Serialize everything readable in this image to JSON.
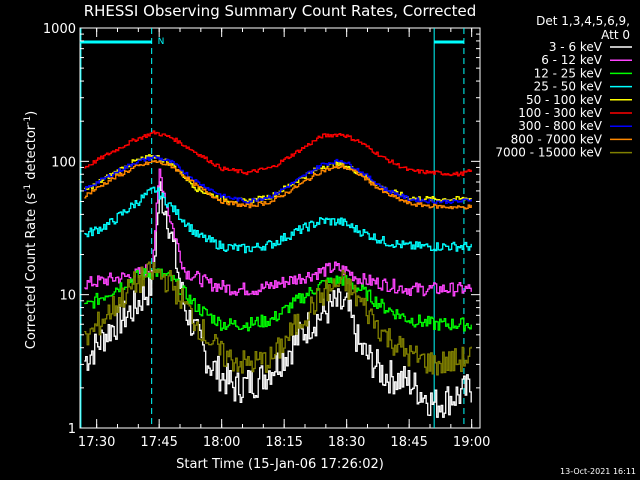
{
  "chart_data": {
    "type": "line",
    "title": "RHESSI Observing Summary Count Rates, Corrected",
    "xlabel": "Start Time (15-Jan-06 17:26:02)",
    "ylabel_main": "Corrected Count Rate (s",
    "ylabel_sup1": "-1",
    "ylabel_mid": " detector",
    "ylabel_sup2": "-1",
    "ylabel_end": ")",
    "yscale": "log",
    "ylim": [
      1,
      1000
    ],
    "xlim_minutes": [
      17.433,
      19.033
    ],
    "x_ticks": [
      {
        "label": "17:30",
        "t": 17.5
      },
      {
        "label": "17:45",
        "t": 17.75
      },
      {
        "label": "18:00",
        "t": 18.0
      },
      {
        "label": "18:15",
        "t": 18.25
      },
      {
        "label": "18:30",
        "t": 18.5
      },
      {
        "label": "18:45",
        "t": 18.75
      },
      {
        "label": "19:00",
        "t": 19.0
      }
    ],
    "y_ticks": [
      {
        "label": "1",
        "v": 1
      },
      {
        "label": "10",
        "v": 10
      },
      {
        "label": "100",
        "v": 100
      },
      {
        "label": "1000",
        "v": 1000
      }
    ],
    "legend_header": [
      "Det 1,3,4,5,6,9,",
      "Att 0"
    ],
    "legend_placement": "right",
    "night_marker": "N",
    "night_intervals": [
      [
        17.433,
        17.72
      ],
      [
        18.85,
        19.033
      ]
    ],
    "series": [
      {
        "name": "3 - 6 keV",
        "color": "#ffffff",
        "x": [
          17.45,
          17.55,
          17.65,
          17.72,
          17.75,
          17.78,
          17.85,
          17.95,
          18.05,
          18.15,
          18.25,
          18.35,
          18.45,
          18.5,
          18.55,
          18.65,
          18.75,
          18.85,
          18.95,
          19.0
        ],
        "y": [
          3.2,
          5.5,
          8,
          12,
          60,
          40,
          8,
          3,
          2,
          2.3,
          3.5,
          6,
          8.5,
          8,
          4,
          2.5,
          2.2,
          1.5,
          1.8,
          2
        ]
      },
      {
        "name": "6 - 12 keV",
        "color": "#ff44ff",
        "x": [
          17.45,
          17.55,
          17.65,
          17.72,
          17.75,
          17.78,
          17.85,
          17.95,
          18.05,
          18.15,
          18.25,
          18.35,
          18.45,
          18.5,
          18.55,
          18.65,
          18.75,
          18.85,
          18.95,
          19.0
        ],
        "y": [
          12,
          13,
          14,
          16,
          85,
          45,
          15,
          12,
          11,
          11,
          12.5,
          14,
          16,
          15,
          13,
          12,
          11,
          11,
          11,
          11
        ]
      },
      {
        "name": "12 - 25 keV",
        "color": "#00ff00",
        "x": [
          17.45,
          17.55,
          17.65,
          17.73,
          17.8,
          17.9,
          18.0,
          18.1,
          18.2,
          18.3,
          18.4,
          18.48,
          18.55,
          18.65,
          18.75,
          18.85,
          18.95,
          19.0
        ],
        "y": [
          8,
          10.5,
          13.5,
          15,
          13,
          8,
          6,
          6,
          6.5,
          9,
          12,
          13,
          11,
          8,
          6.5,
          6,
          6,
          6
        ]
      },
      {
        "name": "25 - 50 keV",
        "color": "#00ffff",
        "x": [
          17.45,
          17.55,
          17.65,
          17.73,
          17.8,
          17.9,
          18.0,
          18.1,
          18.2,
          18.3,
          18.4,
          18.48,
          18.55,
          18.65,
          18.75,
          18.85,
          18.95,
          19.0
        ],
        "y": [
          28,
          34,
          48,
          62,
          45,
          28,
          23,
          22,
          24,
          30,
          36,
          35,
          30,
          25,
          23,
          23,
          23,
          23
        ]
      },
      {
        "name": "50 - 100 keV",
        "color": "#ffff00",
        "x": [
          17.45,
          17.55,
          17.65,
          17.73,
          17.8,
          17.9,
          18.0,
          18.1,
          18.2,
          18.3,
          18.4,
          18.48,
          18.55,
          18.65,
          18.75,
          18.85,
          18.95,
          19.0
        ],
        "y": [
          60,
          78,
          100,
          110,
          95,
          62,
          52,
          50,
          55,
          72,
          92,
          95,
          82,
          62,
          53,
          52,
          52,
          53
        ]
      },
      {
        "name": "100 - 300 keV",
        "color": "#ff0000",
        "x": [
          17.45,
          17.55,
          17.65,
          17.73,
          17.8,
          17.9,
          18.0,
          18.1,
          18.2,
          18.3,
          18.4,
          18.48,
          18.55,
          18.65,
          18.75,
          18.85,
          18.95,
          19.0
        ],
        "y": [
          90,
          115,
          145,
          165,
          150,
          115,
          88,
          82,
          90,
          118,
          155,
          160,
          140,
          105,
          85,
          82,
          80,
          85
        ]
      },
      {
        "name": "300 - 800 keV",
        "color": "#0000ff",
        "x": [
          17.45,
          17.55,
          17.65,
          17.73,
          17.8,
          17.9,
          18.0,
          18.1,
          18.2,
          18.3,
          18.4,
          18.48,
          18.55,
          18.65,
          18.75,
          18.85,
          18.95,
          19.0
        ],
        "y": [
          62,
          78,
          98,
          108,
          98,
          70,
          55,
          50,
          55,
          72,
          95,
          102,
          85,
          62,
          52,
          50,
          50,
          52
        ]
      },
      {
        "name": "800 - 7000 keV",
        "color": "#ff8800",
        "x": [
          17.45,
          17.55,
          17.65,
          17.73,
          17.8,
          17.9,
          18.0,
          18.1,
          18.2,
          18.3,
          18.4,
          18.48,
          18.55,
          18.65,
          18.75,
          18.85,
          18.95,
          19.0
        ],
        "y": [
          55,
          72,
          90,
          100,
          92,
          65,
          50,
          46,
          50,
          65,
          85,
          92,
          80,
          58,
          48,
          46,
          45,
          46
        ]
      },
      {
        "name": "7000 - 15000 keV",
        "color": "#808000",
        "x": [
          17.45,
          17.55,
          17.65,
          17.73,
          17.8,
          17.9,
          18.0,
          18.1,
          18.2,
          18.3,
          18.4,
          18.48,
          18.55,
          18.65,
          18.75,
          18.85,
          18.95,
          19.0
        ],
        "y": [
          4.5,
          7.5,
          12,
          15,
          12,
          6,
          3.5,
          3,
          3.3,
          6,
          10,
          12.5,
          9,
          5,
          3.5,
          3,
          3.2,
          3.5
        ]
      }
    ]
  },
  "footer_timestamp": "13-Oct-2021 16:11"
}
